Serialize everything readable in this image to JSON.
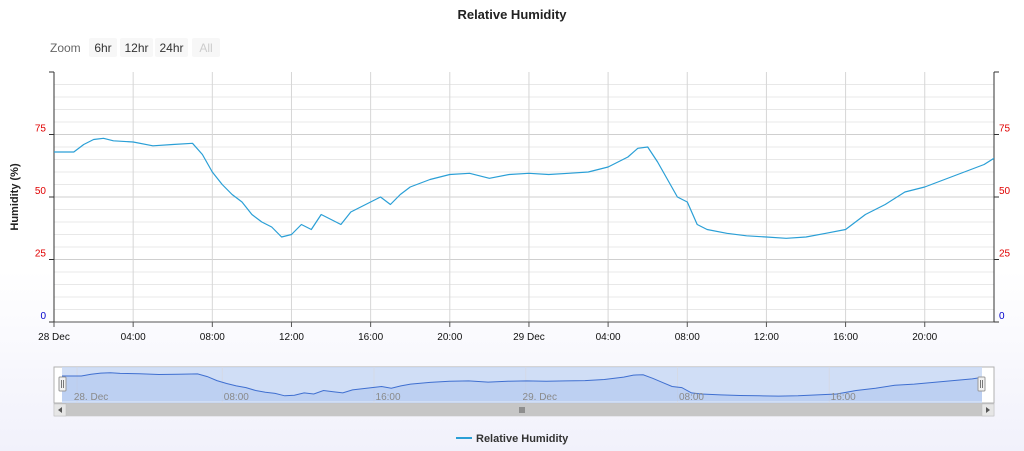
{
  "chart": {
    "title": "Relative Humidity",
    "zoom": {
      "label": "Zoom",
      "buttons": [
        {
          "label": "6hr",
          "disabled": false
        },
        {
          "label": "12hr",
          "disabled": false
        },
        {
          "label": "24hr",
          "disabled": false
        },
        {
          "label": "All",
          "disabled": true
        }
      ]
    },
    "legend": {
      "label": "Relative Humidity"
    }
  },
  "chart_data": {
    "type": "line",
    "title": "Relative Humidity",
    "xlabel": "",
    "ylabel": "Humidity (%)",
    "ylim": [
      0,
      100
    ],
    "xlim": [
      "2023-12-28 00:00",
      "2023-12-29 23:30"
    ],
    "grid": true,
    "legend_position": "bottom-center",
    "colors": {
      "series": "#2a9fd6",
      "left_axis_ticks": "#e00000",
      "right_axis_ticks": "#e00000",
      "zero_tick": "#0000cc",
      "navigator_fill": "#c8d8f5"
    },
    "y_ticks": [
      {
        "value": 0,
        "label": "0"
      },
      {
        "value": 25,
        "label": "25"
      },
      {
        "value": 50,
        "label": "50"
      },
      {
        "value": 75,
        "label": "75"
      }
    ],
    "x_ticks": [
      {
        "x": "2023-12-28 00:00",
        "label": "28 Dec"
      },
      {
        "x": "2023-12-28 04:00",
        "label": "04:00"
      },
      {
        "x": "2023-12-28 08:00",
        "label": "08:00"
      },
      {
        "x": "2023-12-28 12:00",
        "label": "12:00"
      },
      {
        "x": "2023-12-28 16:00",
        "label": "16:00"
      },
      {
        "x": "2023-12-28 20:00",
        "label": "20:00"
      },
      {
        "x": "2023-12-29 00:00",
        "label": "29 Dec"
      },
      {
        "x": "2023-12-29 04:00",
        "label": "04:00"
      },
      {
        "x": "2023-12-29 08:00",
        "label": "08:00"
      },
      {
        "x": "2023-12-29 12:00",
        "label": "12:00"
      },
      {
        "x": "2023-12-29 16:00",
        "label": "16:00"
      },
      {
        "x": "2023-12-29 20:00",
        "label": "20:00"
      }
    ],
    "navigator_ticks": [
      {
        "x": "2023-12-28 01:30",
        "label": "28. Dec"
      },
      {
        "x": "2023-12-28 09:00",
        "label": "08:00"
      },
      {
        "x": "2023-12-28 16:50",
        "label": "16:00"
      },
      {
        "x": "2023-12-29 00:40",
        "label": "29. Dec"
      },
      {
        "x": "2023-12-29 08:30",
        "label": "08:00"
      },
      {
        "x": "2023-12-29 16:20",
        "label": "16:00"
      }
    ],
    "series": [
      {
        "name": "Relative Humidity",
        "points": [
          [
            "2023-12-28 00:00",
            68
          ],
          [
            "2023-12-28 01:00",
            68
          ],
          [
            "2023-12-28 01:30",
            71
          ],
          [
            "2023-12-28 02:00",
            73
          ],
          [
            "2023-12-28 02:30",
            73.5
          ],
          [
            "2023-12-28 03:00",
            72.5
          ],
          [
            "2023-12-28 04:00",
            72
          ],
          [
            "2023-12-28 05:00",
            70.5
          ],
          [
            "2023-12-28 06:00",
            71
          ],
          [
            "2023-12-28 07:00",
            71.5
          ],
          [
            "2023-12-28 07:30",
            67
          ],
          [
            "2023-12-28 08:00",
            60
          ],
          [
            "2023-12-28 08:30",
            55
          ],
          [
            "2023-12-28 09:00",
            51
          ],
          [
            "2023-12-28 09:30",
            48
          ],
          [
            "2023-12-28 10:00",
            43
          ],
          [
            "2023-12-28 10:30",
            40
          ],
          [
            "2023-12-28 11:00",
            38
          ],
          [
            "2023-12-28 11:30",
            34
          ],
          [
            "2023-12-28 12:00",
            35
          ],
          [
            "2023-12-28 12:30",
            39
          ],
          [
            "2023-12-28 13:00",
            37
          ],
          [
            "2023-12-28 13:30",
            43
          ],
          [
            "2023-12-28 14:00",
            41
          ],
          [
            "2023-12-28 14:30",
            39
          ],
          [
            "2023-12-28 15:00",
            44
          ],
          [
            "2023-12-28 15:30",
            46
          ],
          [
            "2023-12-28 16:00",
            48
          ],
          [
            "2023-12-28 16:30",
            50
          ],
          [
            "2023-12-28 17:00",
            47
          ],
          [
            "2023-12-28 17:30",
            51
          ],
          [
            "2023-12-28 18:00",
            54
          ],
          [
            "2023-12-28 19:00",
            57
          ],
          [
            "2023-12-28 20:00",
            59
          ],
          [
            "2023-12-28 21:00",
            59.5
          ],
          [
            "2023-12-28 22:00",
            57.5
          ],
          [
            "2023-12-28 23:00",
            59
          ],
          [
            "2023-12-29 00:00",
            59.5
          ],
          [
            "2023-12-29 01:00",
            59
          ],
          [
            "2023-12-29 02:00",
            59.5
          ],
          [
            "2023-12-29 03:00",
            60
          ],
          [
            "2023-12-29 04:00",
            62
          ],
          [
            "2023-12-29 05:00",
            66
          ],
          [
            "2023-12-29 05:30",
            69.5
          ],
          [
            "2023-12-29 06:00",
            70
          ],
          [
            "2023-12-29 06:30",
            64
          ],
          [
            "2023-12-29 07:00",
            57
          ],
          [
            "2023-12-29 07:30",
            50
          ],
          [
            "2023-12-29 08:00",
            48
          ],
          [
            "2023-12-29 08:30",
            39
          ],
          [
            "2023-12-29 09:00",
            37
          ],
          [
            "2023-12-29 10:00",
            35.5
          ],
          [
            "2023-12-29 11:00",
            34.5
          ],
          [
            "2023-12-29 12:00",
            34
          ],
          [
            "2023-12-29 13:00",
            33.5
          ],
          [
            "2023-12-29 14:00",
            34
          ],
          [
            "2023-12-29 15:00",
            35.5
          ],
          [
            "2023-12-29 16:00",
            37
          ],
          [
            "2023-12-29 16:30",
            40
          ],
          [
            "2023-12-29 17:00",
            43
          ],
          [
            "2023-12-29 18:00",
            47
          ],
          [
            "2023-12-29 19:00",
            52
          ],
          [
            "2023-12-29 20:00",
            54
          ],
          [
            "2023-12-29 21:00",
            57
          ],
          [
            "2023-12-29 22:00",
            60
          ],
          [
            "2023-12-29 23:00",
            63
          ],
          [
            "2023-12-29 23:30",
            65.5
          ]
        ]
      }
    ]
  }
}
